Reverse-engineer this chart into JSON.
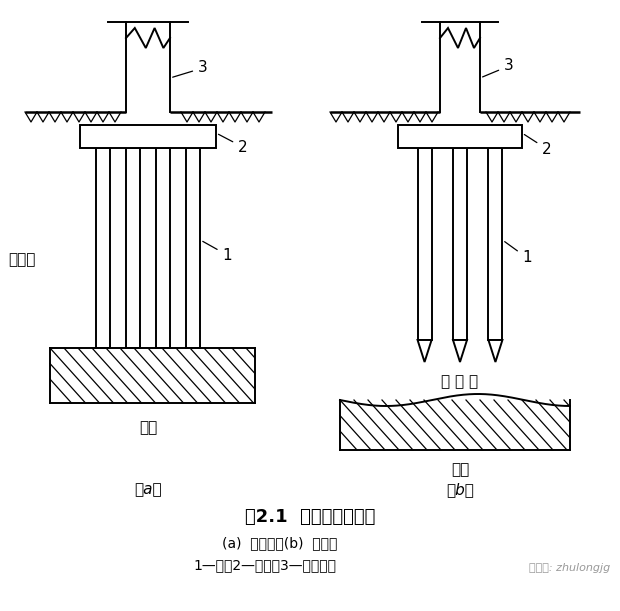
{
  "bg_color": "#ffffff",
  "line_color": "#000000",
  "title": "图2.1  端承桩与摩擦桩",
  "subtitle": "(a)  端承桩；(b)  摩擦桩",
  "legend": "1—桩；2—承台；3—上部结构",
  "label_a": "（a）",
  "label_b": "（b）",
  "soft_layer_a": "软土层",
  "soft_layer_b": "软 土 层",
  "hard_layer": "硬层",
  "n1": "1",
  "n2": "2",
  "n3": "3",
  "watermark": "微信号: zhulongjg",
  "fig_width": 6.2,
  "fig_height": 6.11,
  "dpi": 100
}
